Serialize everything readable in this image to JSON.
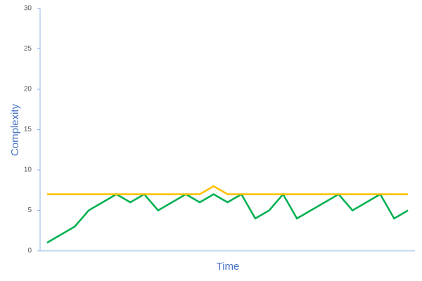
{
  "chart_data": {
    "type": "line",
    "x_label": "Time",
    "y_label": "Complexity",
    "categories": [
      null,
      null,
      null,
      null,
      null,
      null,
      null,
      null,
      null,
      null,
      null,
      null,
      null,
      null,
      null,
      null,
      null,
      null,
      null,
      null,
      null,
      null,
      null,
      null,
      null,
      null,
      null
    ],
    "series": [
      {
        "color": "#00b050",
        "values": [
          1,
          2,
          3,
          5,
          6,
          7,
          6,
          7,
          5,
          6,
          7,
          6,
          7,
          6,
          7,
          4,
          5,
          7,
          4,
          5,
          6,
          7,
          5,
          6,
          7,
          4,
          5
        ]
      },
      {
        "color": "#ffc000",
        "values": [
          7,
          7,
          7,
          7,
          7,
          7,
          7,
          7,
          7,
          7,
          7,
          7,
          8,
          7,
          7,
          7,
          7,
          7,
          7,
          7,
          7,
          7,
          7,
          7,
          7,
          7,
          7
        ]
      }
    ],
    "ylim": [
      0,
      30
    ],
    "yticks": [
      0,
      5,
      10,
      15,
      20,
      25,
      30
    ]
  }
}
